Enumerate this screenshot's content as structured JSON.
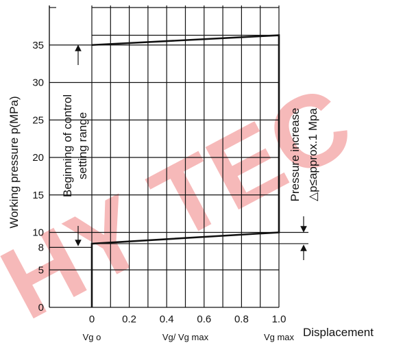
{
  "chart_data": {
    "type": "line",
    "title": "",
    "xlabel": "Displacement",
    "ylabel": "Working pressure p(MPa)",
    "xlim": [
      0,
      1.0
    ],
    "ylim": [
      0,
      40
    ],
    "x_ticks": [
      "0",
      "0.2",
      "0.4",
      "0.6",
      "0.8",
      "1.0"
    ],
    "y_ticks": [
      "0",
      "5",
      "10",
      "15",
      "20",
      "25",
      "30",
      "35"
    ],
    "extra_y_tick": "8",
    "x_sublabels": [
      {
        "at": 0,
        "text": "Vg o"
      },
      {
        "at": 0.5,
        "text": "Vg/ Vg max"
      },
      {
        "at": 1.0,
        "text": "Vg max"
      }
    ],
    "series": [
      {
        "x": [
          0,
          0,
          1.0,
          1.0,
          0
        ],
        "y": [
          0,
          8.5,
          10,
          36.3,
          35
        ]
      }
    ],
    "annotations": {
      "left_range": [
        "Beginning of control",
        "setting range"
      ],
      "right_range": [
        "Pressure increase",
        "△p≤approx.1 Mpa"
      ]
    },
    "grid": true,
    "watermark": "HY TEC"
  }
}
